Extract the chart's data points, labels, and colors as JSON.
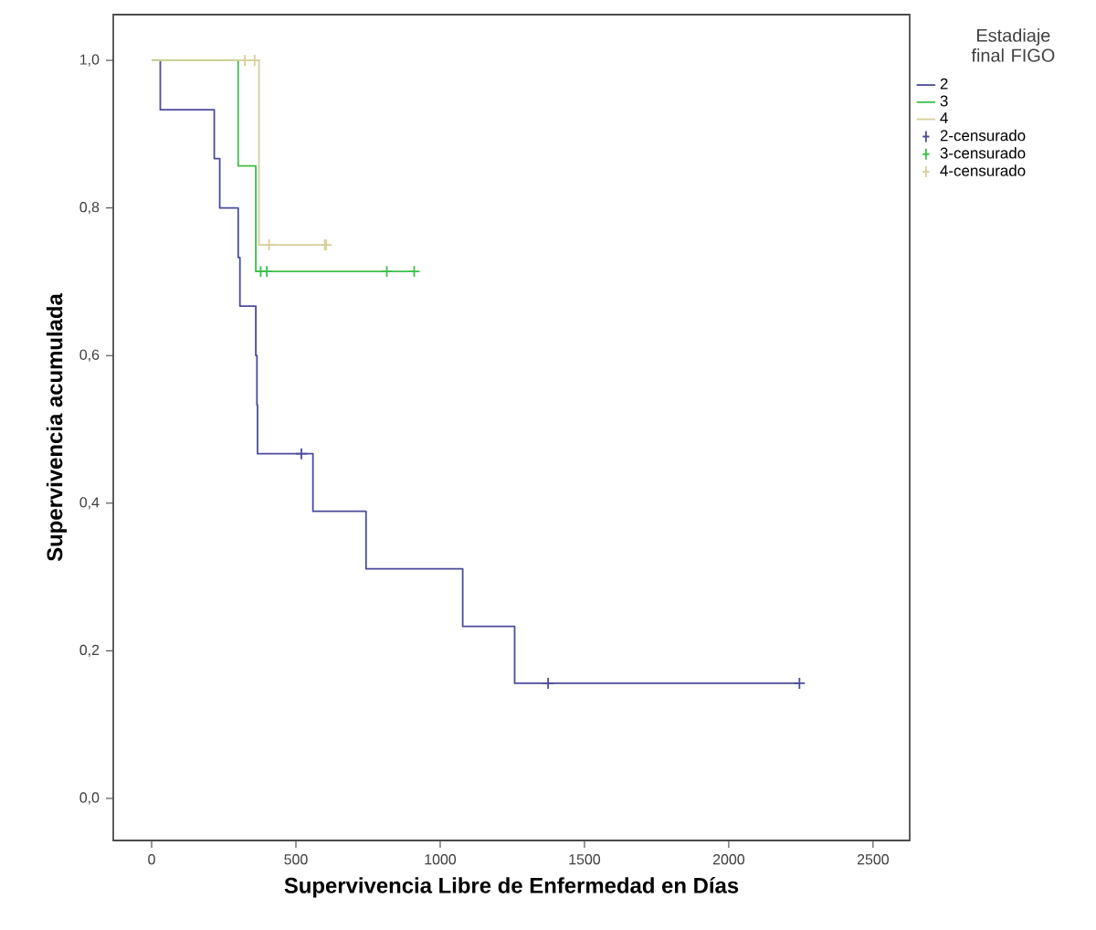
{
  "chart_data": {
    "type": "step",
    "xlabel": "Supervivencia Libre de Enfermedad en Días",
    "ylabel": "Supervivencia acumulada",
    "legend_title": "Estadiaje final FIGO",
    "legend": "right",
    "grid": false,
    "xlim": [
      -133,
      2627
    ],
    "ylim": [
      -0.057,
      1.062
    ],
    "xticks": [
      0,
      500,
      1000,
      1500,
      2000,
      2500
    ],
    "yticks": [
      {
        "value": 0,
        "label": "0,0"
      },
      {
        "value": 0.2,
        "label": "0,2"
      },
      {
        "value": 0.4,
        "label": "0,4"
      },
      {
        "value": 0.6,
        "label": "0,6"
      },
      {
        "value": 0.8,
        "label": "0,8"
      },
      {
        "value": 1.0,
        "label": "1,0"
      }
    ],
    "series": [
      {
        "name": "2",
        "color": "#4b4b9c",
        "x": [
          0,
          30,
          217,
          236,
          300,
          306,
          361,
          365,
          367,
          559,
          743,
          1078,
          1258,
          2245
        ],
        "values": [
          1,
          0.933,
          0.867,
          0.8,
          0.733,
          0.667,
          0.6,
          0.533,
          0.467,
          0.389,
          0.311,
          0.233,
          0.156,
          0.156
        ]
      },
      {
        "name": "3",
        "color": "#3dbf4a",
        "x": [
          0,
          300,
          361,
          910
        ],
        "values": [
          1,
          0.857,
          0.714,
          0.714
        ]
      },
      {
        "name": "4",
        "color": "#d8cf9a",
        "x": [
          0,
          372,
          605
        ],
        "values": [
          1,
          0.75,
          0.75
        ]
      },
      {
        "name": "2-censurado",
        "type": "scatter",
        "marker": "cross",
        "color": "#4b4b9c",
        "x": [
          519,
          1374,
          2245
        ],
        "values": [
          0.467,
          0.156,
          0.156
        ]
      },
      {
        "name": "3-censurado",
        "type": "scatter",
        "marker": "cross",
        "color": "#3dbf4a",
        "x": [
          378,
          399,
          815,
          910
        ],
        "values": [
          0.714,
          0.714,
          0.714,
          0.714
        ]
      },
      {
        "name": "4-censurado",
        "type": "scatter",
        "marker": "cross",
        "color": "#d8cf9a",
        "x": [
          323,
          357,
          407,
          600,
          605
        ],
        "values": [
          1,
          1,
          0.75,
          0.75,
          0.75
        ]
      }
    ]
  }
}
